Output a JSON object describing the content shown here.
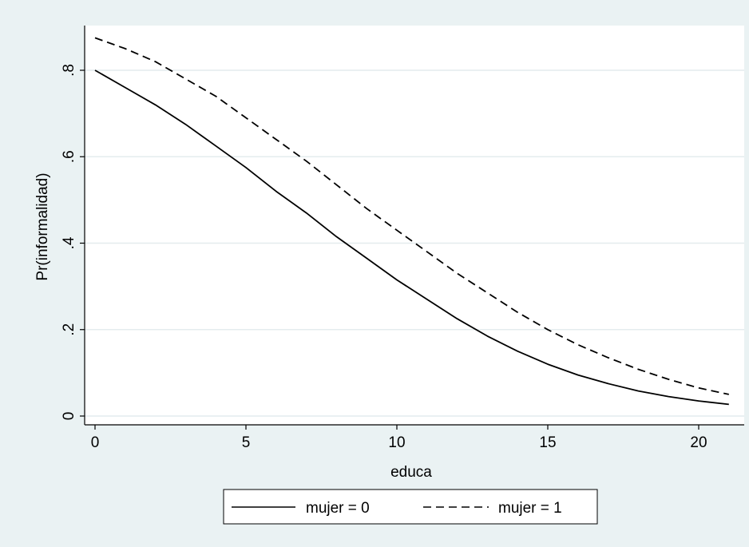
{
  "chart_data": {
    "type": "line",
    "title": "",
    "xlabel": "educa",
    "ylabel": "Pr(informalidad)",
    "xlim": [
      0,
      21
    ],
    "ylim": [
      0,
      0.9
    ],
    "x_ticks": [
      0,
      5,
      10,
      15,
      20
    ],
    "x_tick_labels": [
      "0",
      "5",
      "10",
      "15",
      "20"
    ],
    "y_ticks": [
      0,
      0.2,
      0.4,
      0.6,
      0.8
    ],
    "y_tick_labels": [
      "0",
      ".2",
      ".4",
      ".6",
      ".8"
    ],
    "grid": true,
    "legend_position": "bottom",
    "x": [
      0,
      1,
      2,
      3,
      4,
      5,
      6,
      7,
      8,
      9,
      10,
      11,
      12,
      13,
      14,
      15,
      16,
      17,
      18,
      19,
      20,
      21
    ],
    "series": [
      {
        "name": "mujer = 0",
        "style": "solid",
        "color": "#000000",
        "values": [
          0.8,
          0.76,
          0.72,
          0.675,
          0.625,
          0.575,
          0.52,
          0.47,
          0.415,
          0.365,
          0.315,
          0.27,
          0.225,
          0.185,
          0.15,
          0.12,
          0.095,
          0.075,
          0.058,
          0.045,
          0.035,
          0.027
        ]
      },
      {
        "name": "mujer = 1",
        "style": "dashed",
        "color": "#000000",
        "values": [
          0.875,
          0.85,
          0.82,
          0.78,
          0.74,
          0.69,
          0.64,
          0.59,
          0.535,
          0.48,
          0.43,
          0.38,
          0.33,
          0.285,
          0.24,
          0.2,
          0.165,
          0.135,
          0.108,
          0.085,
          0.065,
          0.05
        ]
      }
    ]
  },
  "colors": {
    "outer_background": "#eaf2f3",
    "plot_background": "#ffffff",
    "gridline": "#e4ecee",
    "axis": "#000000"
  }
}
